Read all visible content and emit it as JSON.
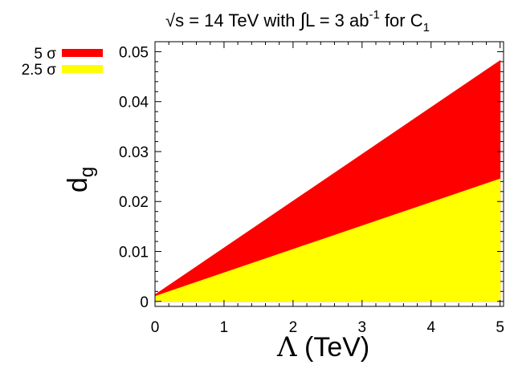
{
  "chart_data": {
    "type": "area",
    "title": {
      "sqrt": "√",
      "prefix": "s = 14 TeV with ",
      "integral": "∫",
      "mid": "L = 3 ab",
      "exp": "-1",
      "suffix": " for C",
      "sub": "1"
    },
    "xlabel": {
      "symbol": "Λ",
      "unit": " (TeV)"
    },
    "ylabel": {
      "main": "d",
      "sub": "g"
    },
    "xlim": [
      0,
      5.05
    ],
    "ylim": [
      -0.001,
      0.052
    ],
    "x_ticks": [
      {
        "value": 0,
        "label": "0"
      },
      {
        "value": 1,
        "label": "1"
      },
      {
        "value": 2,
        "label": "2"
      },
      {
        "value": 3,
        "label": "3"
      },
      {
        "value": 4,
        "label": "4"
      },
      {
        "value": 5,
        "label": "5"
      }
    ],
    "y_ticks": [
      {
        "value": 0,
        "label": "0"
      },
      {
        "value": 0.01,
        "label": "0.01"
      },
      {
        "value": 0.02,
        "label": "0.02"
      },
      {
        "value": 0.03,
        "label": "0.03"
      },
      {
        "value": 0.04,
        "label": "0.04"
      },
      {
        "value": 0.05,
        "label": "0.05"
      }
    ],
    "series": [
      {
        "name": "5 σ",
        "color": "#ff0000",
        "x": [
          0,
          5
        ],
        "upper": [
          0.0013,
          0.0482
        ]
      },
      {
        "name": "2.5 σ",
        "color": "#ffff00",
        "x": [
          0,
          5
        ],
        "upper": [
          0.001,
          0.0245
        ]
      }
    ],
    "legend_position": "top-left, outside plot"
  }
}
